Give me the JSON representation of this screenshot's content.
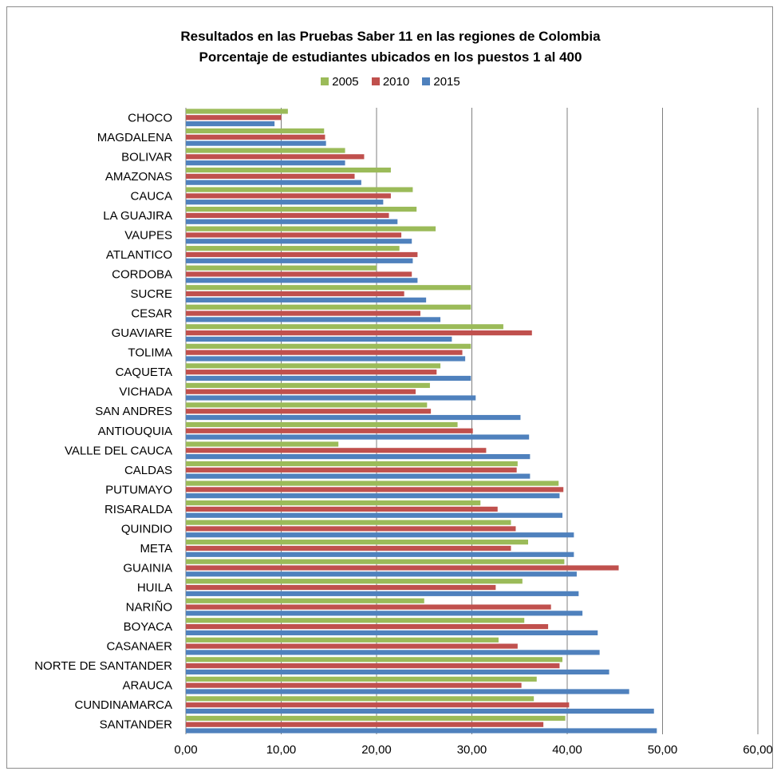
{
  "chart_data": {
    "type": "bar",
    "orientation": "horizontal",
    "title": "Resultados en las Pruebas Saber 11 en las regiones de Colombia",
    "subtitle": "Porcentaje de estudiantes ubicados en los puestos 1 al 400",
    "xlim": [
      0,
      60
    ],
    "xticks": [
      "0,00",
      "10,00",
      "20,00",
      "30,00",
      "40,00",
      "50,00",
      "60,00"
    ],
    "grid": true,
    "legend_position": "top",
    "categories": [
      "CHOCO",
      "MAGDALENA",
      "BOLIVAR",
      "AMAZONAS",
      "CAUCA",
      "LA GUAJIRA",
      "VAUPES",
      "ATLANTICO",
      "CORDOBA",
      "SUCRE",
      "CESAR",
      "GUAVIARE",
      "TOLIMA",
      "CAQUETA",
      "VICHADA",
      "SAN ANDRES",
      "ANTIOUQUIA",
      "VALLE DEL CAUCA",
      "CALDAS",
      "PUTUMAYO",
      "RISARALDA",
      "QUINDIO",
      "META",
      "GUAINIA",
      "HUILA",
      "NARIÑO",
      "BOYACA",
      "CASANAER",
      "NORTE DE SANTANDER",
      "ARAUCA",
      "CUNDINAMARCA",
      "SANTANDER"
    ],
    "series": [
      {
        "name": "2005",
        "color": "#9bbb59",
        "values": [
          10.7,
          14.5,
          16.7,
          21.5,
          23.8,
          24.2,
          26.2,
          22.4,
          20.0,
          29.9,
          29.9,
          33.3,
          29.9,
          26.7,
          25.6,
          25.3,
          28.5,
          16.0,
          34.8,
          39.1,
          30.9,
          34.1,
          35.9,
          39.7,
          35.3,
          25.0,
          35.5,
          32.8,
          39.5,
          36.8,
          36.5,
          39.8
        ]
      },
      {
        "name": "2010",
        "color": "#c0504d",
        "values": [
          10.0,
          14.6,
          18.7,
          17.7,
          21.5,
          21.3,
          22.6,
          24.3,
          23.7,
          22.9,
          24.6,
          36.3,
          29.0,
          26.3,
          24.1,
          25.7,
          30.1,
          31.5,
          34.7,
          39.6,
          32.7,
          34.6,
          34.1,
          45.4,
          32.5,
          38.3,
          38.0,
          34.8,
          39.2,
          35.2,
          40.2,
          37.5
        ]
      },
      {
        "name": "2015",
        "color": "#4f81bd",
        "values": [
          9.3,
          14.7,
          16.7,
          18.4,
          20.7,
          22.2,
          23.7,
          23.8,
          24.3,
          25.2,
          26.7,
          27.9,
          29.3,
          29.9,
          30.4,
          35.1,
          36.0,
          36.1,
          36.1,
          39.2,
          39.5,
          40.7,
          40.7,
          41.0,
          41.2,
          41.6,
          43.2,
          43.4,
          44.4,
          46.5,
          49.1,
          49.4
        ]
      }
    ]
  }
}
